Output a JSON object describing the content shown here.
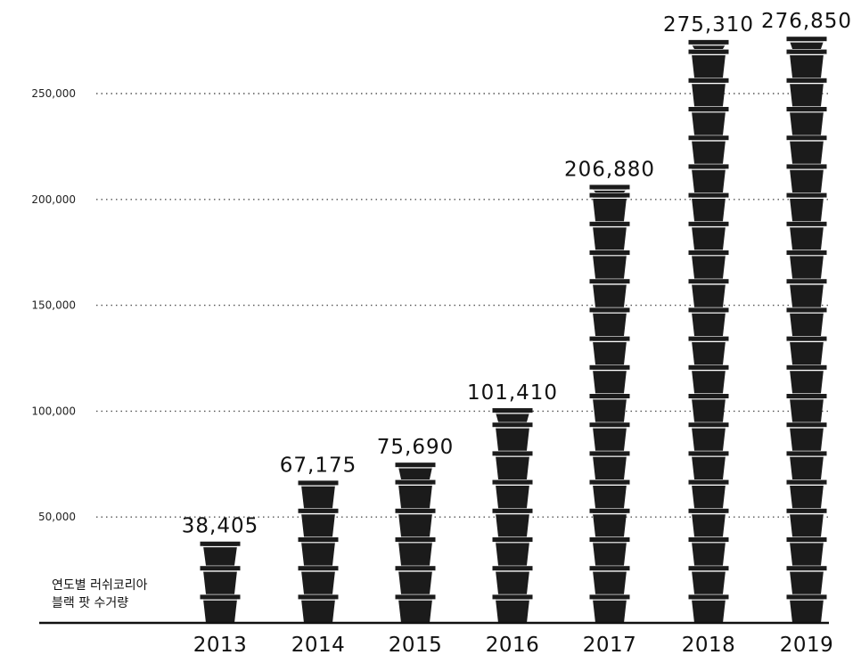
{
  "chart_data": {
    "type": "bar",
    "categories": [
      "2013",
      "2014",
      "2015",
      "2016",
      "2017",
      "2018",
      "2019"
    ],
    "values": [
      38405,
      67175,
      75690,
      101410,
      206880,
      275310,
      276850
    ],
    "value_labels": [
      "38,405",
      "67,175",
      "75,690",
      "101,410",
      "206,880",
      "275,310",
      "276,850"
    ],
    "yticks": [
      50000,
      100000,
      150000,
      200000,
      250000
    ],
    "ytick_labels": [
      "50,000",
      "100,000",
      "150,000",
      "200,000",
      "250,000"
    ],
    "ylim": [
      0,
      280000
    ],
    "grid": "dotted horizontal",
    "bar_style": "stacked pot icons",
    "annotation": [
      "연도별 러쉬코리아",
      "블랙 팟 수거량"
    ],
    "colors": {
      "bar": "#1b1b1b",
      "rim": "#ffffff",
      "grid": "#555555",
      "axis": "#111111"
    }
  }
}
